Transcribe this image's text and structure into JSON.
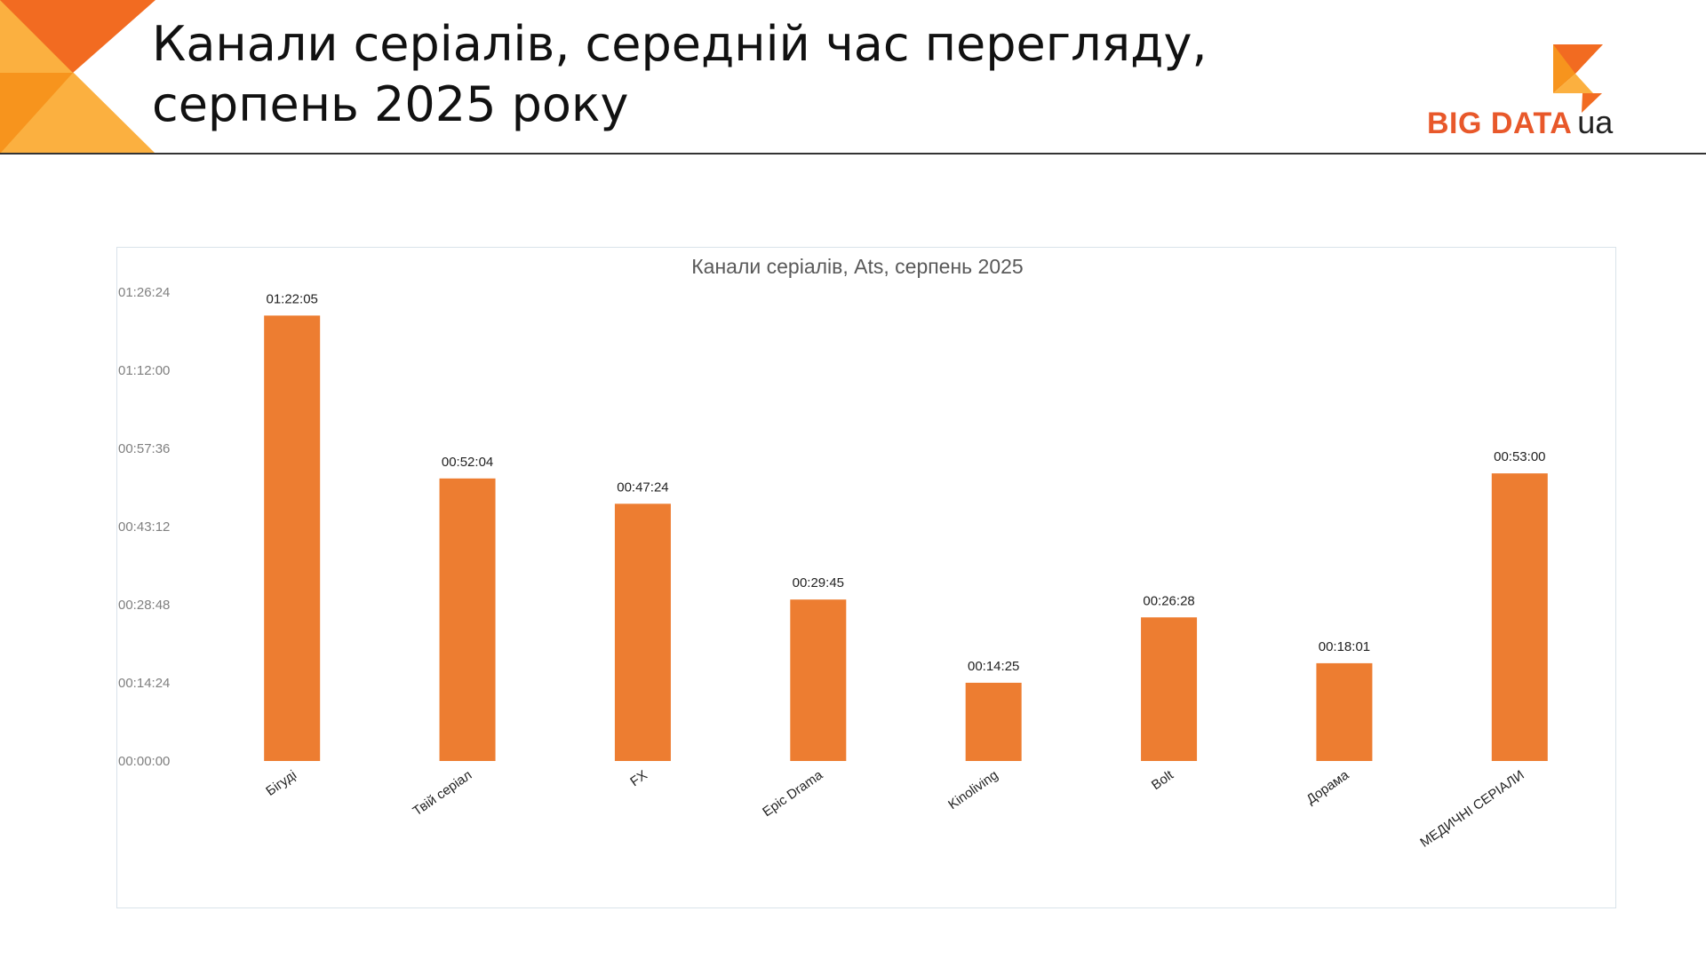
{
  "slide": {
    "title_line1": "Канали серіалів, середній час перегляду,",
    "title_line2": "серпень 2025 року"
  },
  "logo": {
    "main": "BIG DATA",
    "suffix": "ua"
  },
  "colors": {
    "bar": "#ED7D31",
    "corner_dark": "#F26B21",
    "corner_mid": "#F7941D",
    "corner_light": "#FBB040"
  },
  "chart_data": {
    "type": "bar",
    "title": "Канали серіалів, Ats, серпень 2025",
    "categories": [
      "Бігуді",
      "Твій серіал",
      "FX",
      "Epic Drama",
      "Kinoliving",
      "Bolt",
      "Дорама",
      "МЕДИЧНІ СЕРІАЛИ"
    ],
    "values_seconds": [
      4925,
      3124,
      2844,
      1785,
      865,
      1588,
      1081,
      3180
    ],
    "value_labels": [
      "01:22:05",
      "00:52:04",
      "00:47:24",
      "00:29:45",
      "00:14:25",
      "00:26:28",
      "00:18:01",
      "00:53:00"
    ],
    "y_ticks_seconds": [
      0,
      864,
      1728,
      2592,
      3456,
      4320,
      5184
    ],
    "y_tick_labels": [
      "00:00:00",
      "00:14:24",
      "00:28:48",
      "00:43:12",
      "00:57:36",
      "01:12:00",
      "01:26:24"
    ],
    "ylim_seconds": [
      0,
      5184
    ],
    "xlabel": "",
    "ylabel": "",
    "grid": false,
    "legend": "none"
  }
}
